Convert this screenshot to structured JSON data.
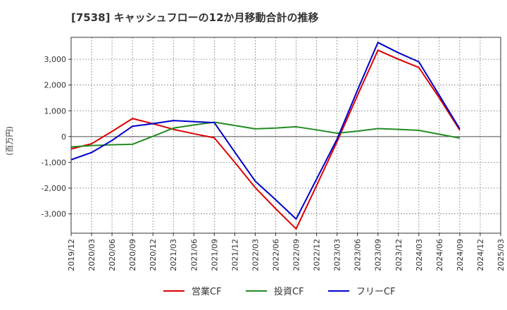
{
  "chart_data": {
    "type": "line",
    "title": "[7538]  キャッシュフローの12か月移動合計の推移",
    "ylabel": "(百万円)",
    "xlabel": "",
    "ylim": [
      -3750,
      3850
    ],
    "yticks": [
      -3000,
      -2000,
      -1000,
      0,
      1000,
      2000,
      3000
    ],
    "ytick_labels": [
      "-3,000",
      "-2,000",
      "-1,000",
      "0",
      "1,000",
      "2,000",
      "3,000"
    ],
    "categories": [
      "2019/12",
      "2020/03",
      "2020/06",
      "2020/09",
      "2020/12",
      "2021/03",
      "2021/06",
      "2021/09",
      "2021/12",
      "2022/03",
      "2022/06",
      "2022/09",
      "2022/12",
      "2023/03",
      "2023/06",
      "2023/09",
      "2023/12",
      "2024/03",
      "2024/06",
      "2024/09",
      "2024/12",
      "2025/03"
    ],
    "grid": true,
    "legend_position": "bottom",
    "series": [
      {
        "name": "営業CF",
        "color": "#dd0000",
        "values": [
          -480,
          -280,
          200,
          700,
          500,
          280,
          110,
          -50,
          -1000,
          -1980,
          -2800,
          -3580,
          -1900,
          -200,
          1600,
          3350,
          3000,
          2680,
          1500,
          250,
          null,
          null
        ]
      },
      {
        "name": "投資CF",
        "color": "#228b22",
        "values": [
          -400,
          -350,
          -320,
          -300,
          10,
          330,
          450,
          560,
          430,
          300,
          330,
          380,
          260,
          130,
          210,
          310,
          280,
          240,
          90,
          -60,
          null,
          null
        ]
      },
      {
        "name": "フリーCF",
        "color": "#0000cc",
        "values": [
          -900,
          -620,
          -150,
          400,
          500,
          620,
          580,
          540,
          -600,
          -1730,
          -2450,
          -3200,
          -1650,
          -100,
          1800,
          3650,
          3250,
          2900,
          1600,
          300,
          null,
          null
        ]
      }
    ]
  }
}
